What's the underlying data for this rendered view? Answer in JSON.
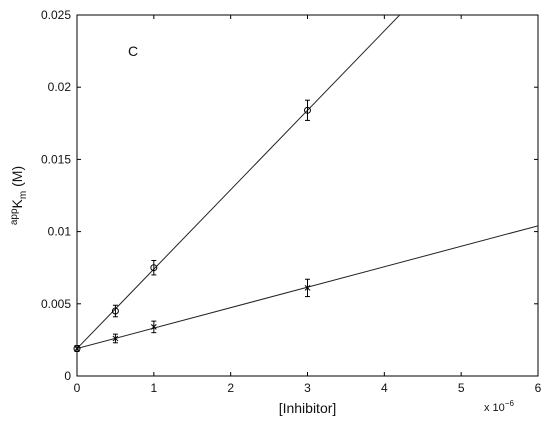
{
  "chart_data": {
    "type": "scatter",
    "panel_label": "C",
    "xlabel": "[Inhibitor]",
    "x_multiplier": "x 10",
    "x_multiplier_exponent": "−6",
    "ylabel_prefix": "app",
    "ylabel_main": "K",
    "ylabel_sub": "m",
    "ylabel_suffix": " (M)",
    "xlim": [
      0,
      6e-06
    ],
    "ylim": [
      0,
      0.025
    ],
    "x_ticks": [
      0,
      1e-06,
      2e-06,
      3e-06,
      4e-06,
      5e-06,
      6e-06
    ],
    "x_tick_labels": [
      "0",
      "1",
      "2",
      "3",
      "4",
      "5",
      "6"
    ],
    "y_ticks": [
      0,
      0.005,
      0.01,
      0.015,
      0.02,
      0.025
    ],
    "y_tick_labels": [
      "0",
      "0.005",
      "0.01",
      "0.015",
      "0.02",
      "0.025"
    ],
    "grid": false,
    "series": [
      {
        "marker": "circle",
        "x": [
          0,
          5e-07,
          1e-06,
          3e-06
        ],
        "y": [
          0.0019,
          0.0045,
          0.0075,
          0.0184
        ],
        "err": [
          0.0002,
          0.0004,
          0.0005,
          0.0007
        ],
        "fit": {
          "slope": 5500,
          "intercept": 0.0019
        }
      },
      {
        "marker": "x",
        "x": [
          0,
          5e-07,
          1e-06,
          3e-06
        ],
        "y": [
          0.0019,
          0.0026,
          0.0034,
          0.0061
        ],
        "err": [
          0.0002,
          0.0003,
          0.0004,
          0.0006
        ],
        "fit": {
          "slope": 1416.7,
          "intercept": 0.0019
        }
      }
    ]
  }
}
